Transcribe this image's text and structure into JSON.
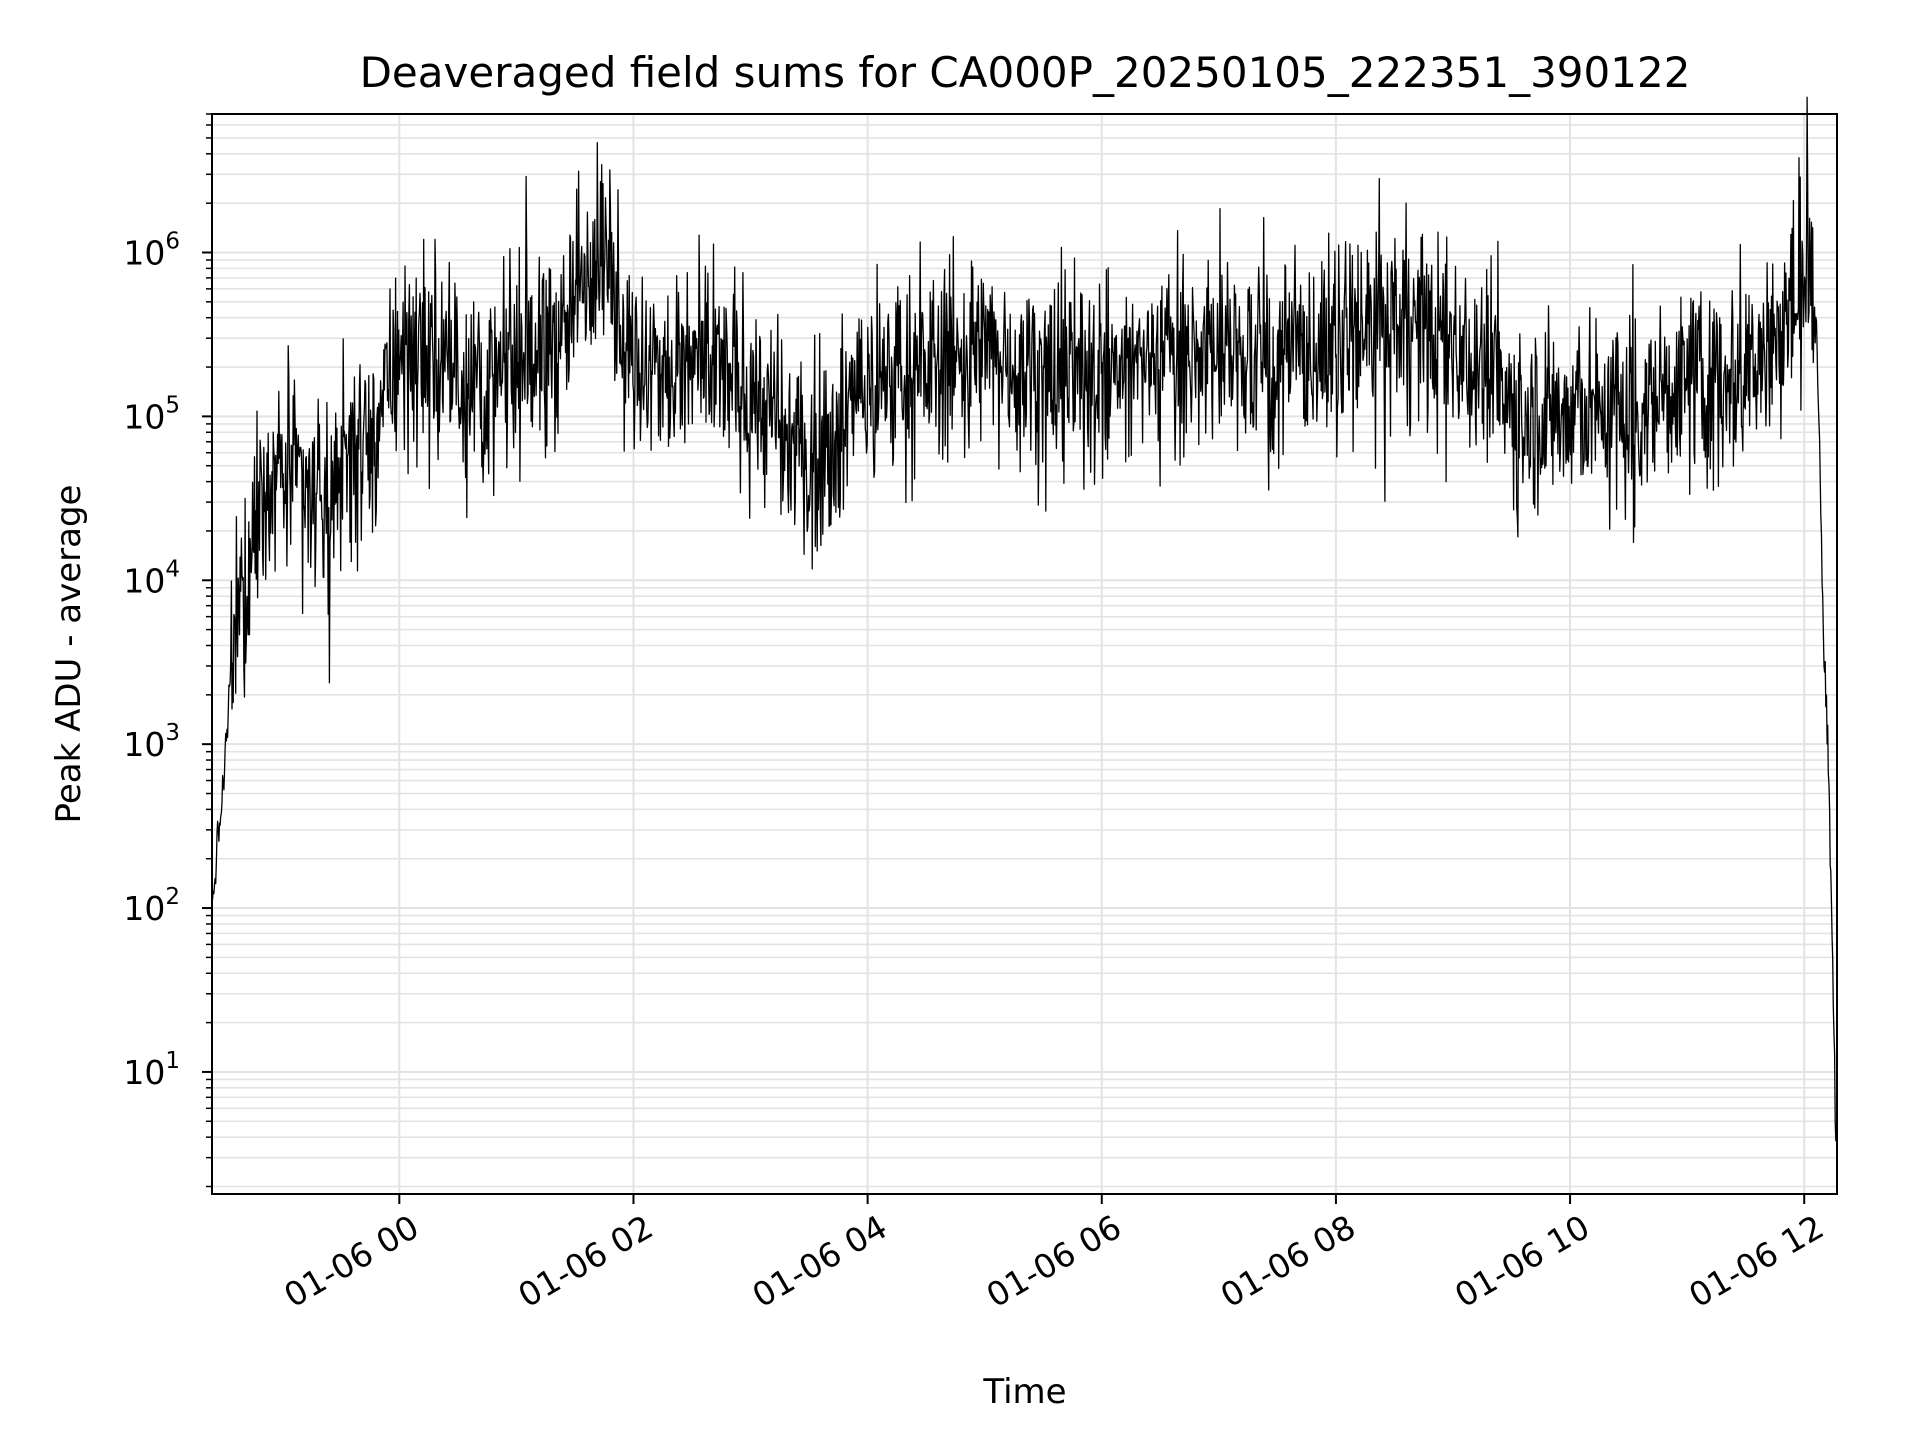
{
  "chart_data": {
    "type": "line",
    "title": "Deaveraged field sums for CA000P_20250105_222351_390122",
    "xlabel": "Time",
    "ylabel": "Peak ADU - average",
    "yscale": "log",
    "ylim": [
      1.8,
      7000000
    ],
    "xlim": [
      "01-05 22:24",
      "01-06 12:17"
    ],
    "grid": true,
    "line_color": "#000000",
    "grid_color": "#e3e3e3",
    "x_ticks": [
      {
        "label": "01-06 00",
        "value": 24
      },
      {
        "label": "01-06 02",
        "value": 26
      },
      {
        "label": "01-06 04",
        "value": 28
      },
      {
        "label": "01-06 06",
        "value": 30
      },
      {
        "label": "01-06 08",
        "value": 32
      },
      {
        "label": "01-06 10",
        "value": 34
      },
      {
        "label": "01-06 12",
        "value": 36
      }
    ],
    "y_ticks": [
      {
        "base": "10",
        "exp": "1",
        "value": 10
      },
      {
        "base": "10",
        "exp": "2",
        "value": 100
      },
      {
        "base": "10",
        "exp": "3",
        "value": 1000
      },
      {
        "base": "10",
        "exp": "4",
        "value": 10000
      },
      {
        "base": "10",
        "exp": "5",
        "value": 100000
      },
      {
        "base": "10",
        "exp": "6",
        "value": 1000000
      }
    ],
    "series": [
      {
        "x_hours": [
          22.4,
          22.45,
          22.5,
          22.55,
          22.6,
          22.7,
          22.8,
          22.9,
          23.0,
          23.2,
          23.4,
          23.6,
          23.8,
          24.0,
          24.2,
          24.5,
          24.8,
          25.0,
          25.3,
          25.5,
          25.6,
          25.7,
          25.8,
          26.0,
          26.3,
          26.6,
          27.0,
          27.3,
          27.5,
          27.8,
          28.0,
          28.5,
          29.0,
          29.5,
          30.0,
          30.5,
          31.0,
          31.5,
          32.0,
          32.3,
          32.6,
          32.9,
          33.2,
          33.5,
          34.0,
          34.5,
          35.0,
          35.5,
          35.8,
          36.0,
          36.05,
          36.1,
          36.13,
          36.16,
          36.2,
          36.24,
          36.27
        ],
        "y_baseline": [
          100,
          250,
          600,
          2000,
          5000,
          10000,
          30000,
          50000,
          45000,
          35000,
          30000,
          60000,
          80000,
          250000,
          200000,
          180000,
          150000,
          200000,
          250000,
          500000,
          900000,
          1300000,
          700000,
          200000,
          180000,
          200000,
          150000,
          70000,
          50000,
          100000,
          150000,
          200000,
          250000,
          200000,
          170000,
          230000,
          250000,
          220000,
          280000,
          350000,
          400000,
          300000,
          250000,
          110000,
          100000,
          110000,
          150000,
          200000,
          350000,
          600000,
          700000,
          450000,
          80000,
          5000,
          1000,
          60,
          4
        ],
        "baseline_role": "envelope used to render the dense noisy trace",
        "noise_decades": 0.38
      }
    ]
  }
}
